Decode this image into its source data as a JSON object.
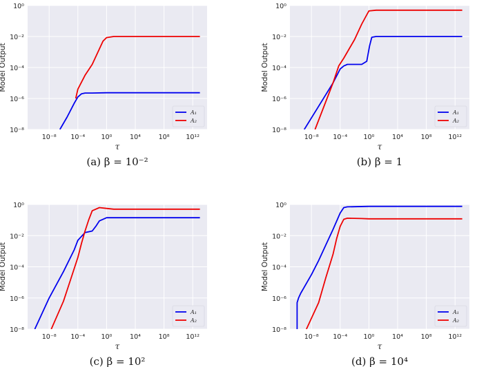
{
  "chart_data": [
    {
      "type": "line",
      "caption": "(a) β = 10⁻²",
      "xlabel": "τ",
      "ylabel": "Model Output",
      "xscale": "log",
      "yscale": "log",
      "xlim_exp": [
        -11,
        14
      ],
      "ylim_exp": [
        -8,
        0
      ],
      "xticks": [
        "10⁻⁸",
        "10⁻⁴",
        "10⁰",
        "10⁴",
        "10⁸",
        "10¹²"
      ],
      "yticks": [
        "10⁻⁸",
        "10⁻⁶",
        "10⁻⁴",
        "10⁻²",
        "10⁰"
      ],
      "grid": true,
      "legend": "lower-right",
      "series": [
        {
          "name": "A₁",
          "color": "#0000ee",
          "x_exp": [
            -6.5,
            -5.5,
            -4.5,
            -4,
            -3.5,
            -3,
            -2,
            0,
            4,
            8,
            13
          ],
          "y_exp": [
            -8,
            -7.2,
            -6.3,
            -5.9,
            -5.7,
            -5.65,
            -5.65,
            -5.63,
            -5.63,
            -5.63,
            -5.63
          ]
        },
        {
          "name": "A₂",
          "color": "#ee0000",
          "x_exp": [
            -4.3,
            -4,
            -3,
            -2,
            -1,
            -0.5,
            0,
            1,
            4,
            8,
            13
          ],
          "y_exp": [
            -6,
            -5.4,
            -4.5,
            -3.8,
            -2.8,
            -2.3,
            -2.07,
            -2,
            -2,
            -2,
            -2
          ]
        }
      ]
    },
    {
      "type": "line",
      "caption": "(b) β = 1",
      "xlabel": "τ",
      "ylabel": "Model Output",
      "xscale": "log",
      "yscale": "log",
      "xlim_exp": [
        -11,
        14
      ],
      "ylim_exp": [
        -8,
        0
      ],
      "xticks": [
        "10⁻⁸",
        "10⁻⁴",
        "10⁰",
        "10⁴",
        "10⁸",
        "10¹²"
      ],
      "yticks": [
        "10⁻⁸",
        "10⁻⁶",
        "10⁻⁴",
        "10⁻²",
        "10⁰"
      ],
      "grid": true,
      "legend": "lower-right",
      "series": [
        {
          "name": "A₁",
          "color": "#0000ee",
          "x_exp": [
            -9,
            -7,
            -5,
            -4,
            -3.5,
            -3,
            -1,
            -0.3,
            0.1,
            0.4,
            1,
            4,
            8,
            13
          ],
          "y_exp": [
            -8,
            -6.5,
            -5,
            -4.1,
            -3.9,
            -3.8,
            -3.8,
            -3.6,
            -2.6,
            -2.05,
            -2,
            -2,
            -2,
            -2
          ]
        },
        {
          "name": "A₂",
          "color": "#ee0000",
          "x_exp": [
            -7.5,
            -6,
            -5,
            -4.2,
            -3.5,
            -3,
            -2,
            -1,
            -0.3,
            0,
            1,
            4,
            8,
            13
          ],
          "y_exp": [
            -8,
            -6.2,
            -5,
            -3.9,
            -3.4,
            -3,
            -2.2,
            -1.2,
            -0.6,
            -0.35,
            -0.3,
            -0.3,
            -0.3,
            -0.3
          ]
        }
      ]
    },
    {
      "type": "line",
      "caption": "(c) β = 10²",
      "xlabel": "τ",
      "ylabel": "Model Output",
      "xscale": "log",
      "yscale": "log",
      "xlim_exp": [
        -11,
        14
      ],
      "ylim_exp": [
        -8,
        0
      ],
      "xticks": [
        "10⁻⁸",
        "10⁻⁴",
        "10⁰",
        "10⁴",
        "10⁸",
        "10¹²"
      ],
      "yticks": [
        "10⁻⁸",
        "10⁻⁶",
        "10⁻⁴",
        "10⁻²",
        "10⁰"
      ],
      "grid": true,
      "legend": "lower-right",
      "series": [
        {
          "name": "A₁",
          "color": "#0000ee",
          "x_exp": [
            -10,
            -9.5,
            -8,
            -6,
            -4.5,
            -4,
            -3,
            -2,
            -1.5,
            -1,
            0,
            1,
            4,
            8,
            13
          ],
          "y_exp": [
            -8,
            -7.5,
            -6,
            -4.3,
            -2.9,
            -2.3,
            -1.8,
            -1.7,
            -1.4,
            -1.05,
            -0.85,
            -0.85,
            -0.85,
            -0.85,
            -0.85
          ]
        },
        {
          "name": "A₂",
          "color": "#ee0000",
          "x_exp": [
            -7.7,
            -6,
            -5,
            -4,
            -3.5,
            -3,
            -2.5,
            -2,
            -1,
            0,
            1,
            4,
            8,
            13
          ],
          "y_exp": [
            -8,
            -6.2,
            -4.8,
            -3.4,
            -2.5,
            -1.7,
            -1.0,
            -0.4,
            -0.2,
            -0.25,
            -0.3,
            -0.3,
            -0.3,
            -0.3
          ]
        }
      ]
    },
    {
      "type": "line",
      "caption": "(d) β = 10⁴",
      "xlabel": "τ",
      "ylabel": "Model Output",
      "xscale": "log",
      "yscale": "log",
      "xlim_exp": [
        -11,
        14
      ],
      "ylim_exp": [
        -8,
        0
      ],
      "xticks": [
        "10⁻⁸",
        "10⁻⁴",
        "10⁰",
        "10⁴",
        "10⁸",
        "10¹²"
      ],
      "yticks": [
        "10⁻⁸",
        "10⁻⁶",
        "10⁻⁴",
        "10⁻²",
        "10⁰"
      ],
      "grid": true,
      "legend": "lower-right",
      "series": [
        {
          "name": "A₁",
          "color": "#0000ee",
          "x_exp": [
            -10,
            -10,
            -9.8,
            -9.5,
            -9,
            -8,
            -7,
            -6,
            -5,
            -4,
            -3.5,
            -3,
            0,
            4,
            8,
            13
          ],
          "y_exp": [
            -8,
            -6.3,
            -6.0,
            -5.7,
            -5.3,
            -4.5,
            -3.6,
            -2.6,
            -1.6,
            -0.55,
            -0.2,
            -0.15,
            -0.12,
            -0.12,
            -0.12,
            -0.12
          ]
        },
        {
          "name": "A₂",
          "color": "#ee0000",
          "x_exp": [
            -8.7,
            -7,
            -6,
            -5,
            -4.5,
            -4,
            -3.5,
            -3,
            -1,
            0,
            1,
            4,
            8,
            13
          ],
          "y_exp": [
            -8,
            -6.3,
            -4.7,
            -3.2,
            -2.2,
            -1.4,
            -0.95,
            -0.88,
            -0.9,
            -0.92,
            -0.92,
            -0.92,
            -0.92,
            -0.92
          ]
        }
      ]
    }
  ]
}
